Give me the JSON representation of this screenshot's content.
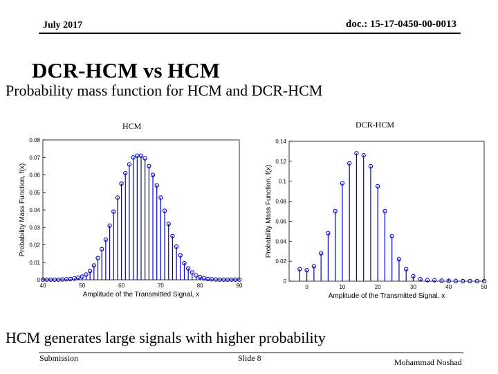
{
  "header": {
    "date": "July 2017",
    "doc": "doc.: 15-17-0450-00-0013"
  },
  "slide": {
    "title": "DCR-HCM vs HCM",
    "subtitle": "Probability mass function for HCM and DCR-HCM",
    "label_hcm": "HCM",
    "label_dcr": "DCR-HCM",
    "bottom_text": "HCM generates large signals with higher probability"
  },
  "footer": {
    "submission": "Submission",
    "slide": "Slide 8",
    "author": "Mohammad Noshad"
  },
  "colors": {
    "stem": "#0000cc"
  },
  "chart_data": [
    {
      "type": "stem",
      "xlabel": "Amplitude of the Transmitted Signal, x",
      "ylabel": "Probability Mass Function, f(x)",
      "xlim": [
        40,
        90
      ],
      "ylim": [
        0,
        0.08
      ],
      "xticks": [
        "40",
        "50",
        "60",
        "70",
        "80",
        "90"
      ],
      "yticks": [
        "0",
        "0.01",
        "0.02",
        "0.03",
        "0.04",
        "0.05",
        "0.06",
        "0.07",
        "0.08"
      ],
      "x": [
        40,
        41,
        42,
        43,
        44,
        45,
        46,
        47,
        48,
        49,
        50,
        51,
        52,
        53,
        54,
        55,
        56,
        57,
        58,
        59,
        60,
        61,
        62,
        63,
        64,
        65,
        66,
        67,
        68,
        69,
        70,
        71,
        72,
        73,
        74,
        75,
        76,
        77,
        78,
        79,
        80,
        81,
        82,
        83,
        84,
        85,
        86,
        87,
        88,
        89,
        90
      ],
      "y": [
        0.0001,
        0.0001,
        0.0001,
        0.0001,
        0.0001,
        0.0002,
        0.0003,
        0.0005,
        0.0008,
        0.0013,
        0.0018,
        0.003,
        0.005,
        0.0082,
        0.0124,
        0.0175,
        0.023,
        0.031,
        0.039,
        0.047,
        0.055,
        0.061,
        0.066,
        0.07,
        0.071,
        0.071,
        0.0695,
        0.065,
        0.06,
        0.054,
        0.047,
        0.0395,
        0.032,
        0.025,
        0.019,
        0.014,
        0.0095,
        0.0065,
        0.0042,
        0.0025,
        0.0015,
        0.0009,
        0.0005,
        0.0003,
        0.0002,
        0.0001,
        0.0001,
        0.0001,
        0.0001,
        0.0001,
        0.0001
      ]
    },
    {
      "type": "stem",
      "xlabel": "Amplitude of the Transmitted Signal, x",
      "ylabel": "Probability Mass Function, f(x)",
      "xlim": [
        -5,
        50
      ],
      "ylim": [
        0,
        0.14
      ],
      "xticks": [
        "0",
        "10",
        "20",
        "30",
        "40",
        "50"
      ],
      "yticks": [
        "0",
        "0.02",
        "0.04",
        "0.06",
        "0.08",
        "0.1",
        "0.12",
        "0.14"
      ],
      "x": [
        -2,
        0,
        2,
        4,
        6,
        8,
        10,
        12,
        14,
        16,
        18,
        20,
        22,
        24,
        26,
        28,
        30,
        32,
        34,
        36,
        38,
        40,
        42,
        44,
        46,
        48,
        50
      ],
      "y": [
        0.012,
        0.011,
        0.015,
        0.028,
        0.048,
        0.07,
        0.098,
        0.118,
        0.128,
        0.126,
        0.115,
        0.095,
        0.07,
        0.045,
        0.022,
        0.012,
        0.005,
        0.002,
        0.001,
        0.001,
        0.0005,
        0.0003,
        0.0002,
        0.0001,
        0.0001,
        0.0001,
        0.0001
      ]
    }
  ]
}
